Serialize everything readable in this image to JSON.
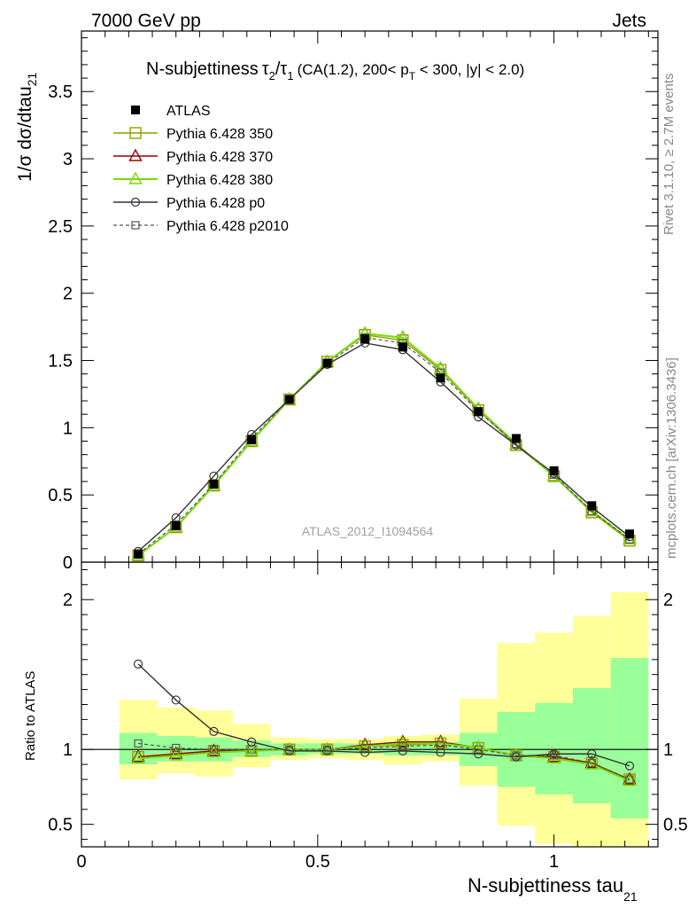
{
  "header": {
    "energy_label": "7000 GeV pp",
    "category_label": "Jets"
  },
  "title": {
    "main": "N-subjettiness",
    "formula_tau2": "τ",
    "formula_sub2": "2",
    "formula_slash": "/",
    "formula_tau1": "τ",
    "formula_sub1": "1",
    "selection_a": "(CA(1.2), 200< p",
    "selection_sub": "T",
    "selection_b": " < 300, |y| < 2.0)"
  },
  "side_labels": {
    "rivet": "Rivet 3.1.10, ≥ 2.7M events",
    "mcplots": "mcplots.cern.ch [arXiv:1306.3436]"
  },
  "watermark": "ATLAS_2012_I1094564",
  "axes": {
    "ylabel_main": "1/σ dσ/dtau",
    "ylabel_main_sub": "21",
    "ylabel_ratio": "Ratio to ATLAS",
    "xlabel": "N-subjettiness tau",
    "xlabel_sub": "21",
    "main_ylim": [
      0,
      3.95
    ],
    "ratio_ylim": [
      0.35,
      2.25
    ],
    "xlim": [
      0,
      1.22
    ],
    "main_yticks": [
      "0",
      "0.5",
      "1",
      "1.5",
      "2",
      "2.5",
      "3",
      "3.5"
    ],
    "ratio_yticks": [
      "0.5",
      "1",
      "2"
    ],
    "xticks": [
      "0",
      "0.5",
      "1"
    ]
  },
  "legend": [
    {
      "label": "ATLAS",
      "key": "atlas"
    },
    {
      "label": "Pythia 6.428 350",
      "key": "p350"
    },
    {
      "label": "Pythia 6.428 370",
      "key": "p370"
    },
    {
      "label": "Pythia 6.428 380",
      "key": "p380"
    },
    {
      "label": "Pythia 6.428 p0",
      "key": "p0"
    },
    {
      "label": "Pythia 6.428 p2010",
      "key": "p2010"
    }
  ],
  "colors": {
    "p350": "#999900",
    "p370": "#990000",
    "p380": "#77dd00",
    "p0": "#333333",
    "p2010": "#555555",
    "band_outer": "#ffff99",
    "band_inner": "#99ff99"
  },
  "chart_data": {
    "type": "line",
    "x": [
      0.12,
      0.2,
      0.28,
      0.36,
      0.44,
      0.52,
      0.6,
      0.68,
      0.76,
      0.84,
      0.92,
      1.0,
      1.08,
      1.16
    ],
    "bin_edges": [
      0.08,
      0.16,
      0.24,
      0.32,
      0.4,
      0.48,
      0.56,
      0.64,
      0.72,
      0.8,
      0.88,
      0.96,
      1.04,
      1.12,
      1.2
    ],
    "atlas": [
      0.06,
      0.27,
      0.58,
      0.91,
      1.21,
      1.48,
      1.66,
      1.6,
      1.37,
      1.12,
      0.92,
      0.68,
      0.42,
      0.21
    ],
    "series": [
      {
        "key": "p350",
        "values": [
          0.05,
          0.26,
          0.57,
          0.9,
          1.21,
          1.49,
          1.69,
          1.65,
          1.43,
          1.13,
          0.87,
          0.64,
          0.37,
          0.16
        ]
      },
      {
        "key": "p370",
        "values": [
          0.05,
          0.26,
          0.57,
          0.9,
          1.21,
          1.49,
          1.7,
          1.67,
          1.44,
          1.14,
          0.88,
          0.64,
          0.38,
          0.17
        ]
      },
      {
        "key": "p380",
        "values": [
          0.05,
          0.26,
          0.57,
          0.9,
          1.21,
          1.49,
          1.7,
          1.67,
          1.44,
          1.14,
          0.88,
          0.64,
          0.38,
          0.17
        ]
      },
      {
        "key": "p0",
        "values": [
          0.08,
          0.33,
          0.64,
          0.95,
          1.21,
          1.47,
          1.63,
          1.58,
          1.34,
          1.08,
          0.87,
          0.66,
          0.41,
          0.19
        ]
      },
      {
        "key": "p2010",
        "values": [
          0.06,
          0.28,
          0.58,
          0.92,
          1.21,
          1.48,
          1.67,
          1.63,
          1.41,
          1.12,
          0.88,
          0.65,
          0.38,
          0.17
        ]
      }
    ],
    "ratio": {
      "p350": [
        0.95,
        0.97,
        0.99,
        0.99,
        1.0,
        1.0,
        1.02,
        1.03,
        1.04,
        1.01,
        0.96,
        0.95,
        0.91,
        0.8
      ],
      "p370": [
        0.95,
        0.97,
        0.99,
        0.99,
        1.0,
        1.0,
        1.03,
        1.05,
        1.05,
        1.01,
        0.96,
        0.95,
        0.91,
        0.8
      ],
      "p380": [
        0.94,
        0.96,
        0.98,
        0.99,
        1.0,
        1.0,
        1.02,
        1.04,
        1.04,
        1.01,
        0.96,
        0.94,
        0.9,
        0.79
      ],
      "p0": [
        1.57,
        1.33,
        1.12,
        1.05,
        0.99,
        0.99,
        0.98,
        0.99,
        0.98,
        0.97,
        0.95,
        0.97,
        0.97,
        0.89
      ],
      "p2010": [
        1.04,
        1.01,
        1.0,
        1.0,
        1.0,
        1.0,
        1.01,
        1.02,
        1.03,
        1.0,
        0.96,
        0.96,
        0.91,
        0.8
      ]
    },
    "band_inner": [
      [
        0.9,
        1.11
      ],
      [
        0.92,
        1.09
      ],
      [
        0.92,
        1.08
      ],
      [
        0.95,
        1.06
      ],
      [
        0.96,
        1.04
      ],
      [
        0.97,
        1.04
      ],
      [
        0.97,
        1.04
      ],
      [
        0.96,
        1.05
      ],
      [
        0.96,
        1.05
      ],
      [
        0.89,
        1.11
      ],
      [
        0.75,
        1.25
      ],
      [
        0.7,
        1.31
      ],
      [
        0.64,
        1.41
      ],
      [
        0.54,
        1.61
      ]
    ],
    "band_outer": [
      [
        0.8,
        1.33
      ],
      [
        0.84,
        1.28
      ],
      [
        0.82,
        1.26
      ],
      [
        0.88,
        1.17
      ],
      [
        0.93,
        1.08
      ],
      [
        0.94,
        1.07
      ],
      [
        0.93,
        1.07
      ],
      [
        0.9,
        1.09
      ],
      [
        0.92,
        1.1
      ],
      [
        0.76,
        1.34
      ],
      [
        0.49,
        1.71
      ],
      [
        0.37,
        1.78
      ],
      [
        0.35,
        1.89
      ],
      [
        0.35,
        2.05
      ]
    ]
  }
}
